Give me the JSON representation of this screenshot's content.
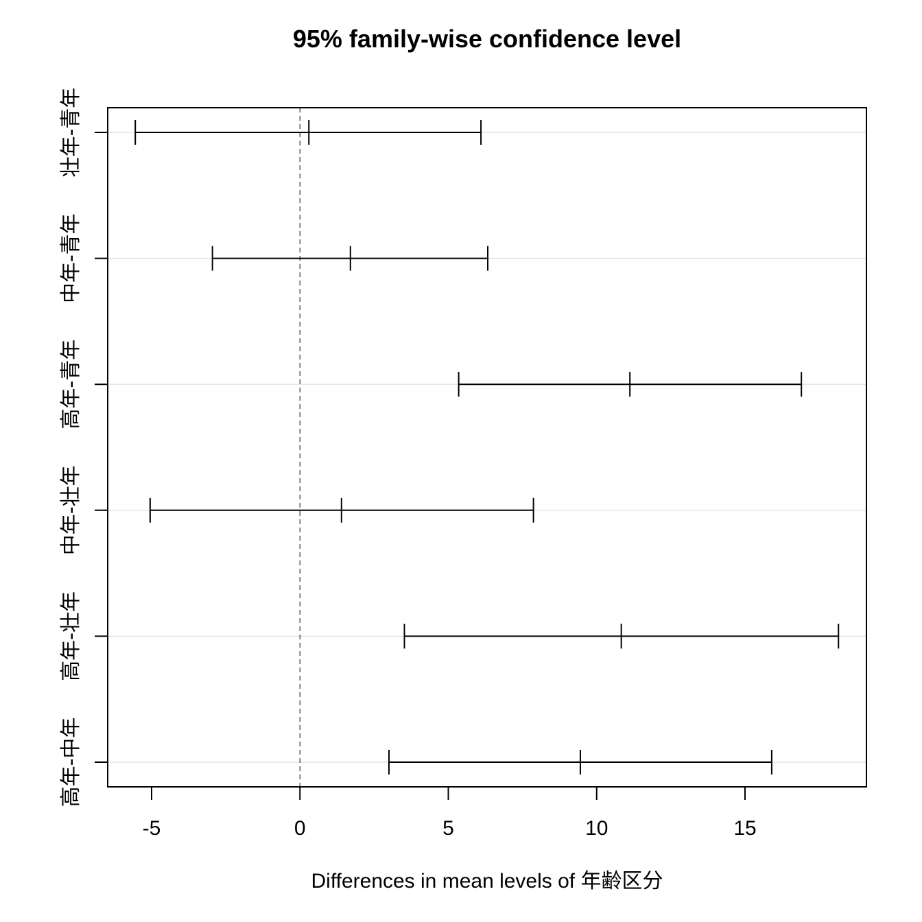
{
  "chart_data": {
    "type": "interval",
    "title": "95% family-wise confidence level",
    "xlabel": "Differences in mean levels of 年齢区分",
    "ylabel": "",
    "xlim": [
      -6.5,
      19.1
    ],
    "xticks": [
      -5,
      0,
      5,
      10,
      15
    ],
    "xtick_labels": [
      "-5",
      "0",
      "5",
      "10",
      "15"
    ],
    "reference_line": 0,
    "grid": true,
    "categories": [
      "壮年-青年",
      "中年-青年",
      "高年-青年",
      "中年-壮年",
      "高年-壮年",
      "高年-中年"
    ],
    "intervals": [
      {
        "label": "壮年-青年",
        "lower": -5.55,
        "estimate": 0.3,
        "upper": 6.1
      },
      {
        "label": "中年-青年",
        "lower": -2.95,
        "estimate": 1.7,
        "upper": 6.33
      },
      {
        "label": "高年-青年",
        "lower": 5.35,
        "estimate": 11.12,
        "upper": 16.9
      },
      {
        "label": "中年-壮年",
        "lower": -5.05,
        "estimate": 1.4,
        "upper": 7.87
      },
      {
        "label": "高年-壮年",
        "lower": 3.52,
        "estimate": 10.83,
        "upper": 18.15
      },
      {
        "label": "高年-中年",
        "lower": 3.0,
        "estimate": 9.45,
        "upper": 15.9
      }
    ]
  }
}
